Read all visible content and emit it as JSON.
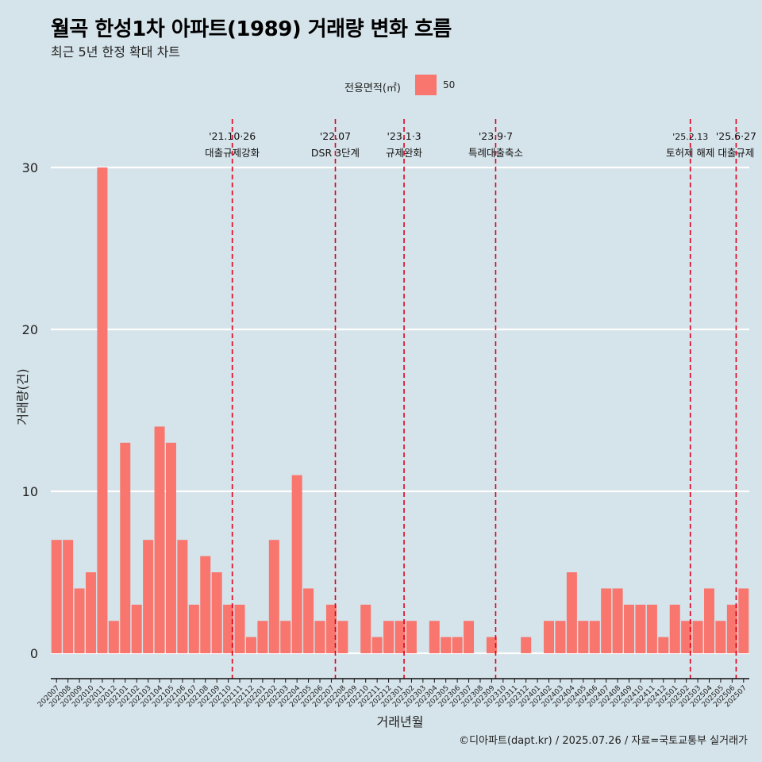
{
  "title": "월곡 한성1차 아파트(1989) 거래량 변화 흐름",
  "subtitle": "최근 5년 한정 확대 차트",
  "legend": {
    "title": "전용면적(㎡)",
    "label": "50"
  },
  "caption": "©디아파트(dapt.kr) / 2025.07.26 / 자료=국토교통부 실거래가",
  "colors": {
    "background": "#d5e3ea",
    "bar": "#f8766d",
    "event_line": "#e0001b",
    "grid": "#ffffff"
  },
  "chart_data": {
    "type": "bar",
    "xlabel": "거래년월",
    "ylabel": "거래량(건)",
    "ylim": [
      0,
      32
    ],
    "yticks": [
      0,
      10,
      20,
      30
    ],
    "grid": true,
    "legend_position": "top",
    "categories": [
      "202007",
      "202008",
      "202009",
      "202010",
      "202011",
      "202012",
      "202101",
      "202102",
      "202103",
      "202104",
      "202105",
      "202106",
      "202107",
      "202108",
      "202109",
      "202110",
      "202111",
      "202112",
      "202201",
      "202202",
      "202203",
      "202204",
      "202205",
      "202206",
      "202207",
      "202208",
      "202209",
      "202210",
      "202211",
      "202212",
      "202301",
      "202302",
      "202303",
      "202304",
      "202305",
      "202306",
      "202307",
      "202308",
      "202309",
      "202310",
      "202311",
      "202312",
      "202401",
      "202402",
      "202403",
      "202404",
      "202405",
      "202406",
      "202407",
      "202408",
      "202409",
      "202410",
      "202411",
      "202412",
      "202501",
      "202502",
      "202503",
      "202504",
      "202505",
      "202506",
      "202507"
    ],
    "series": [
      {
        "name": "50",
        "values": [
          7,
          7,
          4,
          5,
          30,
          2,
          13,
          3,
          7,
          14,
          13,
          7,
          3,
          6,
          5,
          3,
          3,
          1,
          2,
          7,
          2,
          11,
          4,
          2,
          3,
          2,
          0,
          3,
          1,
          2,
          2,
          2,
          0,
          2,
          1,
          1,
          2,
          0,
          1,
          0,
          0,
          1,
          0,
          2,
          2,
          5,
          2,
          2,
          4,
          4,
          3,
          3,
          3,
          1,
          3,
          2,
          2,
          4,
          2,
          3,
          4
        ]
      }
    ],
    "annotations": [
      {
        "month": "202110",
        "date": "'21.10·26",
        "label": "대출규제강화"
      },
      {
        "month": "202207",
        "date": "'22.07",
        "label": "DSR 3단계"
      },
      {
        "month": "202301",
        "date": "'23.1·3",
        "label": "규제완화"
      },
      {
        "month": "202309",
        "date": "'23.9·7",
        "label": "특례대출축소"
      },
      {
        "month": "202502",
        "date": "'25.2.13",
        "label": "토허제 해제"
      },
      {
        "month": "202506",
        "date": "'25.6·27",
        "label": "대출규제"
      }
    ]
  }
}
